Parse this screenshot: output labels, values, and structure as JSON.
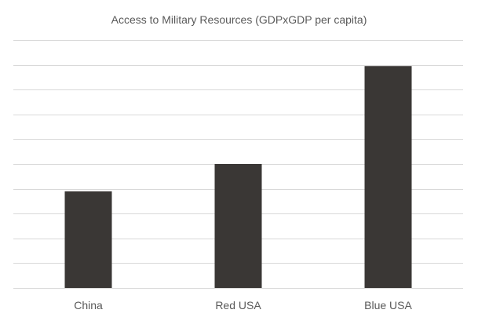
{
  "chart_data": {
    "type": "bar",
    "title": "Access to Military Resources (GDPxGDP per capita)",
    "xlabel": "",
    "ylabel": "",
    "categories": [
      "China",
      "Red USA",
      "Blue USA"
    ],
    "values": [
      3.9,
      5.0,
      8.95
    ],
    "ylim": [
      0,
      10
    ],
    "grid": true,
    "y_tick_labels_shown": false,
    "legend": "none",
    "colors": {
      "bar": "#3a3735",
      "grid": "#d9d9d9",
      "text": "#595959"
    }
  }
}
